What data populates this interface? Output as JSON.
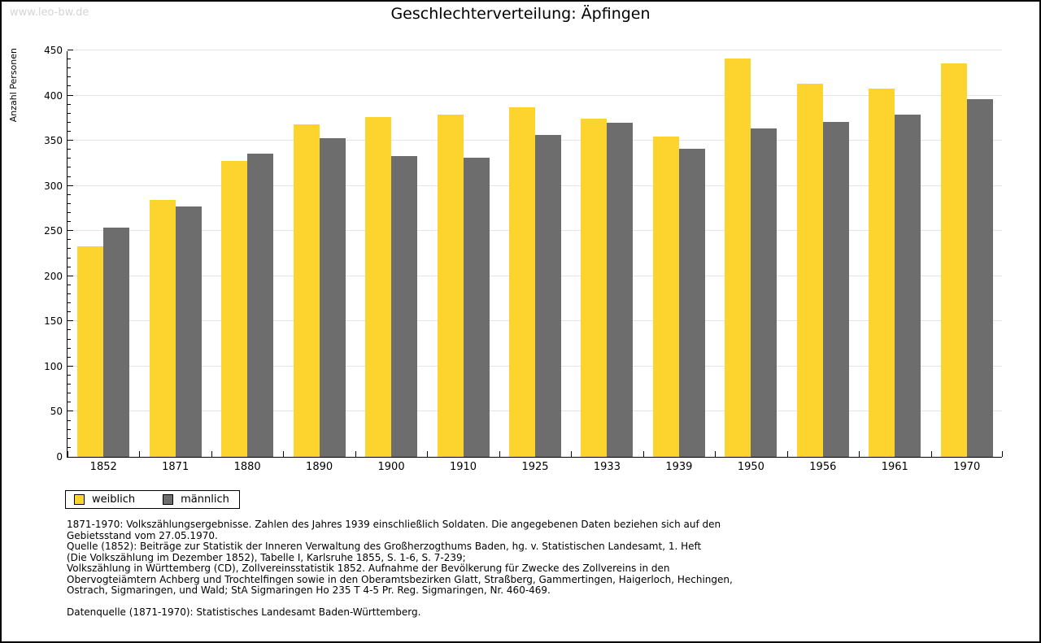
{
  "page": {
    "watermark": "www.leo-bw.de"
  },
  "chart_data": {
    "type": "bar",
    "title": "Geschlechterverteilung: Äpfingen",
    "xlabel": "",
    "ylabel": "Anzahl Personen",
    "ylim": [
      0,
      450
    ],
    "yticks": [
      0,
      50,
      100,
      150,
      200,
      250,
      300,
      350,
      400,
      450
    ],
    "minor_tick_step": 10,
    "grid": "horizontal-major-only",
    "legend_position": "below-left",
    "categories": [
      "1852",
      "1871",
      "1880",
      "1890",
      "1900",
      "1910",
      "1925",
      "1933",
      "1939",
      "1950",
      "1956",
      "1961",
      "1970"
    ],
    "series": [
      {
        "name": "weiblich",
        "color": "#FCD42D",
        "values": [
          233,
          284,
          328,
          368,
          376,
          379,
          387,
          374,
          355,
          441,
          413,
          408,
          436
        ]
      },
      {
        "name": "männlich",
        "color": "#6D6D6D",
        "values": [
          254,
          277,
          336,
          353,
          333,
          331,
          356,
          370,
          341,
          364,
          371,
          379,
          396
        ]
      }
    ]
  },
  "footer": {
    "source_lines": [
      "1871-1970: Volkszählungsergebnisse. Zahlen des Jahres 1939 einschließlich Soldaten. Die angegebenen Daten beziehen sich auf den",
      "Gebietsstand vom 27.05.1970.",
      "Quelle (1852): Beiträge zur Statistik der Inneren Verwaltung des Großherzogthums Baden, hg. v. Statistischen Landesamt, 1. Heft",
      "(Die Volkszählung im Dezember 1852), Tabelle I, Karlsruhe 1855, S. 1-6, S. 7-239;",
      "Volkszählung in Württemberg (CD), Zollvereinsstatistik 1852. Aufnahme der Bevölkerung für Zwecke des Zollvereins in den",
      "Obervogteiämtern Achberg und Trochtelfingen sowie in den Oberamtsbezirken Glatt, Straßberg, Gammertingen, Haigerloch, Hechingen,",
      "Ostrach, Sigmaringen, und Wald; StA Sigmaringen Ho 235 T 4-5 Pr. Reg. Sigmaringen, Nr. 460-469."
    ],
    "datasource": "Datenquelle (1871-1970): Statistisches Landesamt Baden-Württemberg."
  }
}
